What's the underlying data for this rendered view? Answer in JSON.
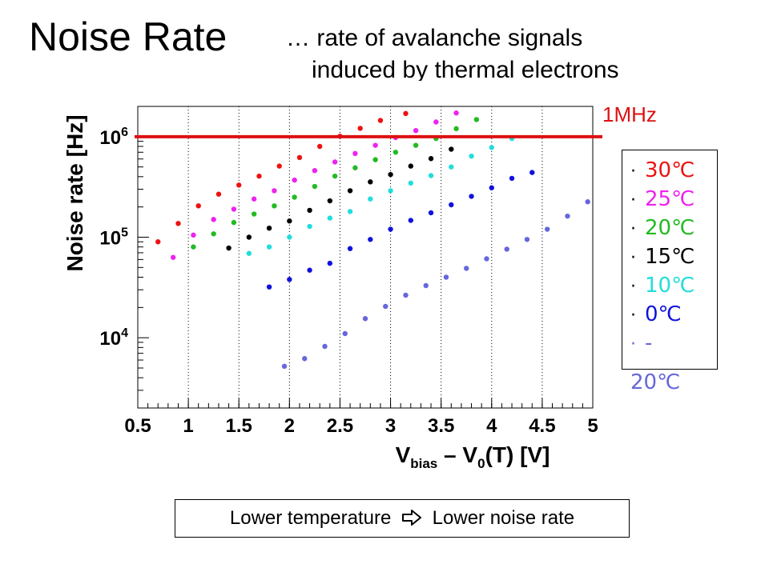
{
  "slide": {
    "title": "Noise Rate",
    "subtitle_line1": "… rate of avalanche signals",
    "subtitle_line2": "induced by thermal electrons",
    "note_left": "Lower temperature",
    "note_right": "Lower noise rate",
    "note_icon": "hollow-right-arrow-icon"
  },
  "reference": {
    "label": "1MHz",
    "value": 1000000,
    "color": "#dd1111"
  },
  "legend": {
    "bullet": "·",
    "items": [
      {
        "label": "30℃",
        "color": "#ee1111"
      },
      {
        "label": "25℃",
        "color": "#ee22ee"
      },
      {
        "label": "20℃",
        "color": "#22bb22"
      },
      {
        "label": "15℃",
        "color": "#000000"
      },
      {
        "label": "10℃",
        "color": "#22dddd"
      },
      {
        "label": "0℃",
        "color": "#1111dd"
      }
    ],
    "last_item": {
      "part1": "-",
      "part2": "20℃",
      "color": "#6666dd"
    }
  },
  "chart_data": {
    "type": "scatter",
    "title": "",
    "xlabel": {
      "main": "V",
      "sub1": "bias",
      "middle": " – V",
      "sub2": "0",
      "end": "(T) [V]"
    },
    "ylabel": "Noise rate [Hz]",
    "xlim": [
      0.5,
      5.0
    ],
    "ylim": [
      2000,
      2000000
    ],
    "yscale": "log",
    "xticks": [
      0.5,
      1,
      1.5,
      2,
      2.5,
      3,
      3.5,
      4,
      4.5,
      5
    ],
    "xtick_labels": [
      "0.5",
      "1",
      "1.5",
      "2",
      "2.5",
      "3",
      "3.5",
      "4",
      "4.5",
      "5"
    ],
    "yticks": [
      10000,
      100000,
      1000000
    ],
    "ytick_labels": [
      {
        "base": "10",
        "exp": "4"
      },
      {
        "base": "10",
        "exp": "5"
      },
      {
        "base": "10",
        "exp": "6"
      }
    ],
    "grid": "vertical dotted",
    "series": [
      {
        "name": "30℃",
        "color": "#ee1111",
        "x": [
          0.7,
          0.9,
          1.1,
          1.3,
          1.5,
          1.7,
          1.9,
          2.1,
          2.3,
          2.5,
          2.7,
          2.9,
          3.15
        ],
        "y": [
          90000,
          137000,
          205000,
          268000,
          330000,
          405000,
          510000,
          620000,
          800000,
          1010000,
          1210000,
          1450000,
          1700000
        ]
      },
      {
        "name": "25℃",
        "color": "#ee22ee",
        "x": [
          0.85,
          1.05,
          1.25,
          1.45,
          1.65,
          1.85,
          2.05,
          2.25,
          2.45,
          2.65,
          2.85,
          3.05,
          3.25,
          3.45,
          3.65
        ],
        "y": [
          63000,
          105000,
          150000,
          190000,
          240000,
          290000,
          370000,
          460000,
          560000,
          680000,
          820000,
          980000,
          1150000,
          1400000,
          1720000
        ]
      },
      {
        "name": "20℃",
        "color": "#22bb22",
        "x": [
          1.05,
          1.25,
          1.45,
          1.65,
          1.85,
          2.05,
          2.25,
          2.45,
          2.65,
          2.85,
          3.05,
          3.25,
          3.45,
          3.65,
          3.85
        ],
        "y": [
          80000,
          108000,
          140000,
          170000,
          205000,
          250000,
          320000,
          405000,
          490000,
          590000,
          700000,
          820000,
          960000,
          1200000,
          1480000
        ]
      },
      {
        "name": "15℃",
        "color": "#000000",
        "x": [
          1.4,
          1.6,
          1.8,
          2.0,
          2.2,
          2.4,
          2.6,
          2.8,
          3.0,
          3.2,
          3.4,
          3.6
        ],
        "y": [
          78000,
          100000,
          123000,
          145000,
          185000,
          230000,
          290000,
          355000,
          420000,
          510000,
          605000,
          750000
        ]
      },
      {
        "name": "10℃",
        "color": "#22dddd",
        "x": [
          1.6,
          1.8,
          2.0,
          2.2,
          2.4,
          2.6,
          2.8,
          3.0,
          3.2,
          3.4,
          3.6,
          3.8,
          4.0,
          4.2
        ],
        "y": [
          69000,
          80000,
          100000,
          128000,
          155000,
          180000,
          240000,
          290000,
          345000,
          410000,
          500000,
          640000,
          780000,
          960000
        ]
      },
      {
        "name": "0℃",
        "color": "#1111dd",
        "x": [
          1.8,
          2.0,
          2.2,
          2.4,
          2.6,
          2.8,
          3.0,
          3.2,
          3.4,
          3.6,
          3.8,
          4.0,
          4.2,
          4.4
        ],
        "y": [
          32000,
          38000,
          47000,
          55000,
          77000,
          95000,
          120000,
          147000,
          175000,
          210000,
          255000,
          310000,
          385000,
          440000
        ]
      },
      {
        "name": "-20℃",
        "color": "#6666dd",
        "x": [
          1.95,
          2.15,
          2.35,
          2.55,
          2.75,
          2.95,
          3.15,
          3.35,
          3.55,
          3.75,
          3.95,
          4.15,
          4.35,
          4.55,
          4.75,
          4.95
        ],
        "y": [
          5200,
          6200,
          8200,
          11000,
          15500,
          20500,
          26500,
          33000,
          40000,
          49000,
          61000,
          76000,
          95000,
          120000,
          162000,
          225000
        ]
      }
    ]
  }
}
